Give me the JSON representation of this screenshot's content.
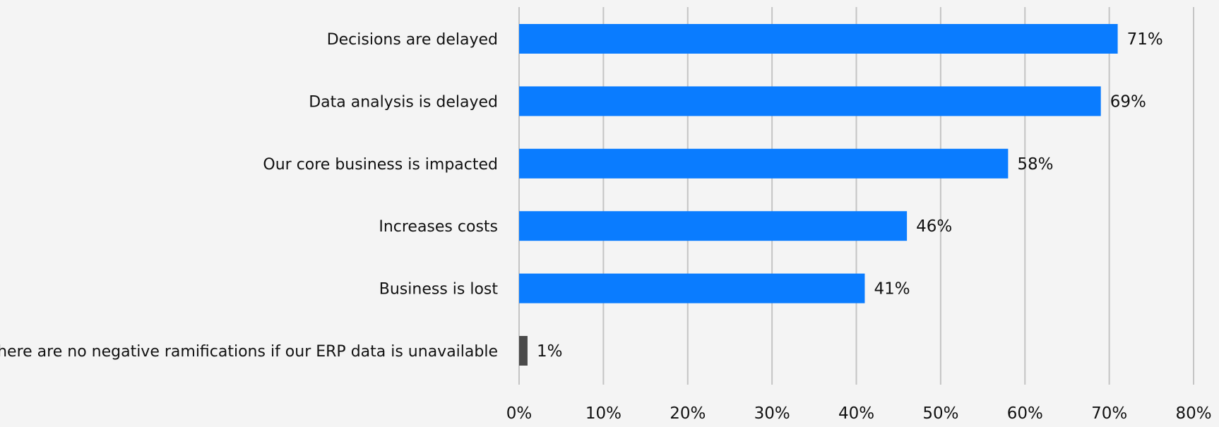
{
  "chart_data": {
    "type": "bar",
    "orientation": "horizontal",
    "title": "",
    "xlabel": "",
    "ylabel": "",
    "categories": [
      "Decisions are delayed",
      "Data analysis is delayed",
      "Our core business is impacted",
      "Increases costs",
      "Business is lost",
      "There are no negative ramifications if our ERP data is unavailable"
    ],
    "values": [
      71,
      69,
      58,
      46,
      41,
      1
    ],
    "value_labels": [
      "71%",
      "69%",
      "58%",
      "46%",
      "41%",
      "1%"
    ],
    "bar_colors": [
      "#0a7cff",
      "#0a7cff",
      "#0a7cff",
      "#0a7cff",
      "#0a7cff",
      "#4a4a4a"
    ],
    "xlim": [
      0,
      80
    ],
    "xticks": [
      0,
      10,
      20,
      30,
      40,
      50,
      60,
      70,
      80
    ],
    "xtick_labels": [
      "0%",
      "10%",
      "20%",
      "30%",
      "40%",
      "50%",
      "60%",
      "70%",
      "80%"
    ],
    "grid": true,
    "legend": "none"
  },
  "colors": {
    "background": "#f4f4f4",
    "gridline": "#c4c4c4",
    "text": "#111111"
  }
}
